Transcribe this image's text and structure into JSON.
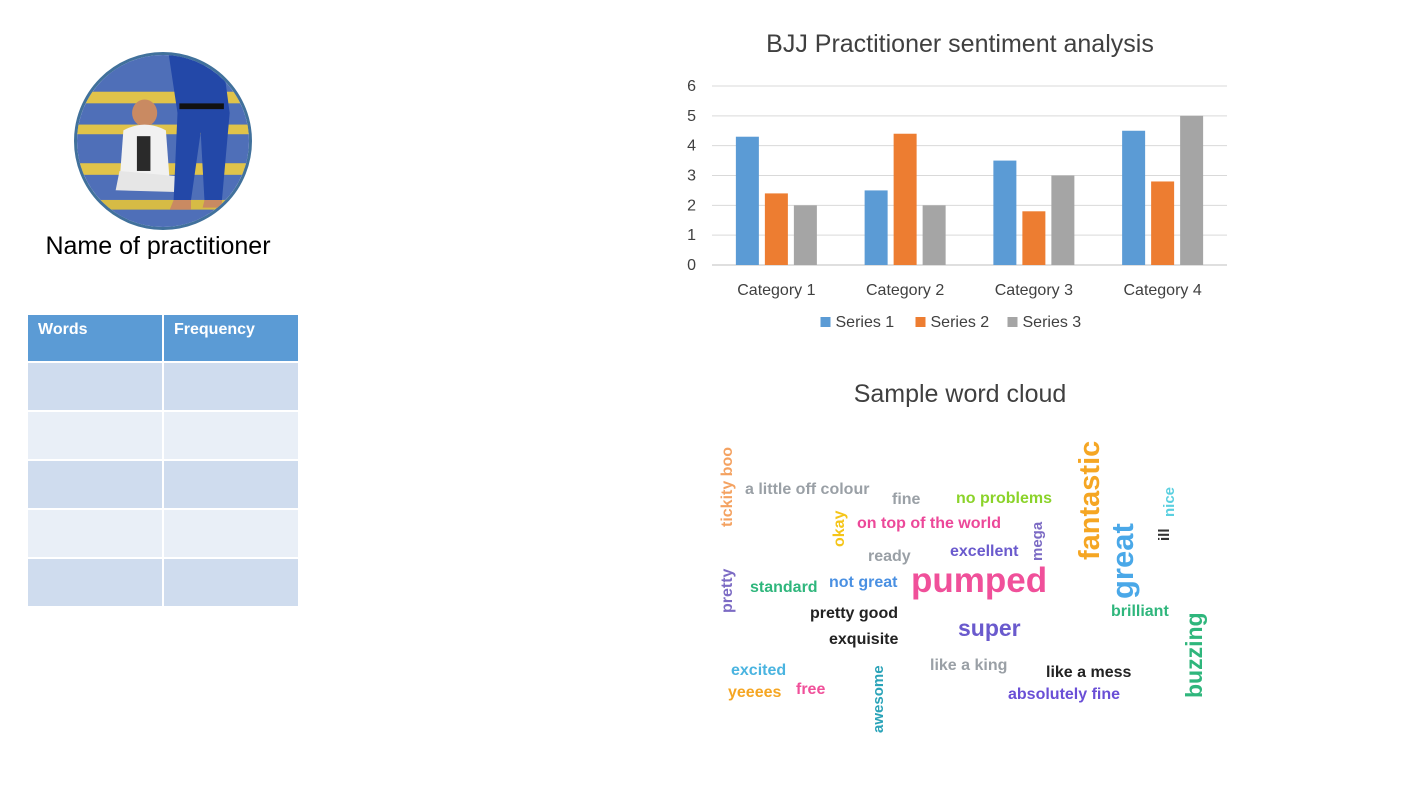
{
  "practitioner": {
    "name": "Name of practitioner",
    "photo_icon": "practitioner-photo"
  },
  "table": {
    "headers": [
      "Words",
      "Frequency"
    ],
    "rows": [
      [
        "",
        ""
      ],
      [
        "",
        ""
      ],
      [
        "",
        ""
      ],
      [
        "",
        ""
      ],
      [
        "",
        ""
      ]
    ]
  },
  "chart_data": {
    "type": "bar",
    "title": "BJJ Practitioner sentiment analysis",
    "categories": [
      "Category 1",
      "Category 2",
      "Category 3",
      "Category 4"
    ],
    "series": [
      {
        "name": "Series 1",
        "values": [
          4.3,
          2.5,
          3.5,
          4.5
        ],
        "color": "#5b9bd5"
      },
      {
        "name": "Series 2",
        "values": [
          2.4,
          4.4,
          1.8,
          2.8
        ],
        "color": "#ed7d31"
      },
      {
        "name": "Series 3",
        "values": [
          2,
          2,
          3,
          5
        ],
        "color": "#a5a5a5"
      }
    ],
    "ylim": [
      0,
      6
    ],
    "yticks": [
      0,
      1,
      2,
      3,
      4,
      5,
      6
    ],
    "grid": true,
    "legend": "bottom"
  },
  "word_cloud": {
    "title": "Sample word cloud",
    "words": [
      {
        "text": "tickity boo",
        "color": "#f4a261"
      },
      {
        "text": "a little off colour",
        "color": "#9aa0a6"
      },
      {
        "text": "fine",
        "color": "#9aa0a6"
      },
      {
        "text": "no problems",
        "color": "#8bd32a"
      },
      {
        "text": "fantastic",
        "color": "#f5a623"
      },
      {
        "text": "nice",
        "color": "#5bd0e0"
      },
      {
        "text": "okay",
        "color": "#f5c518"
      },
      {
        "text": "on top of the world",
        "color": "#ec4899"
      },
      {
        "text": "mega",
        "color": "#7c6bc4"
      },
      {
        "text": "ill",
        "color": "#333333"
      },
      {
        "text": "ready",
        "color": "#9aa0a6"
      },
      {
        "text": "excellent",
        "color": "#6a5acd"
      },
      {
        "text": "great",
        "color": "#4aa8e8"
      },
      {
        "text": "pretty",
        "color": "#7c6bc4"
      },
      {
        "text": "standard",
        "color": "#2fb67c"
      },
      {
        "text": "not great",
        "color": "#4a90e2"
      },
      {
        "text": "pumped",
        "color": "#f0509a"
      },
      {
        "text": "brilliant",
        "color": "#2fb67c"
      },
      {
        "text": "pretty good",
        "color": "#222222"
      },
      {
        "text": "super",
        "color": "#6a5acd"
      },
      {
        "text": "buzzing",
        "color": "#2fb67c"
      },
      {
        "text": "exquisite",
        "color": "#222222"
      },
      {
        "text": "like a king",
        "color": "#9aa0a6"
      },
      {
        "text": "like a mess",
        "color": "#222222"
      },
      {
        "text": "excited",
        "color": "#4ab4e0"
      },
      {
        "text": "awesome",
        "color": "#2aa3b8"
      },
      {
        "text": "yeeees",
        "color": "#f5a623"
      },
      {
        "text": "free",
        "color": "#f0509a"
      },
      {
        "text": "absolutely fine",
        "color": "#6a4fd6"
      }
    ]
  }
}
